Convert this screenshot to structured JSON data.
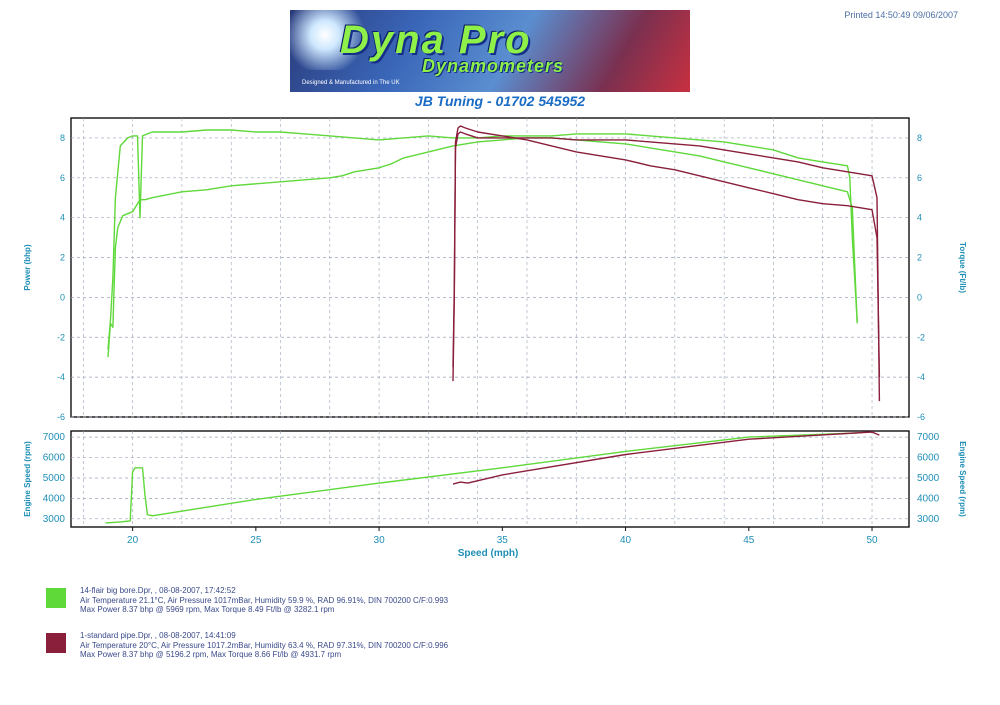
{
  "header": {
    "printed": "Printed 14:50:49 09/06/2007",
    "logo_brand": "Dyna Pro",
    "logo_sub": "Dynamometers",
    "logo_tag": "Designed & Manufactured in The UK",
    "subtitle": "JB Tuning - 01702 545952"
  },
  "colors": {
    "run1": "#5fd83a",
    "run2": "#8a1f3c",
    "axis": "#1f8fb5",
    "grid": "#9aa4b8"
  },
  "chart_data": [
    {
      "type": "line",
      "xlabel": "Speed (mph)",
      "ylabel_left": "Power (bhp)",
      "ylabel_right": "Torque (Ft/lb)",
      "xlim": [
        17.5,
        51.5
      ],
      "ylim": [
        -6,
        9
      ],
      "y_ticks_left": [
        "8",
        "6",
        "4",
        "2",
        "0",
        "-2",
        "-4",
        "-6"
      ],
      "y_ticks_right": [
        "8",
        "6",
        "4",
        "2",
        "0",
        "-2",
        "-4",
        "-6"
      ],
      "grid": true,
      "series": [
        {
          "name": "14-flair big bore.Dpr",
          "quantity": "power",
          "color": "#5fd83a",
          "x": [
            19.0,
            19.1,
            19.2,
            19.25,
            19.3,
            19.4,
            19.6,
            19.8,
            20.0,
            20.3,
            20.5,
            20.8,
            21.2,
            22,
            23,
            24,
            25,
            26,
            27,
            28,
            28.5,
            29,
            30,
            30.5,
            31,
            32,
            33,
            34,
            35,
            36,
            37,
            38,
            39,
            40,
            41,
            42,
            43,
            44,
            45,
            46,
            47,
            48,
            49,
            49.2,
            49.3,
            49.4
          ],
          "y": [
            -3.0,
            -1.3,
            -1.5,
            0.5,
            2.5,
            3.5,
            4.1,
            4.2,
            4.3,
            4.9,
            4.9,
            5.0,
            5.1,
            5.3,
            5.4,
            5.6,
            5.7,
            5.8,
            5.9,
            6.0,
            6.1,
            6.3,
            6.5,
            6.7,
            7.0,
            7.3,
            7.6,
            7.8,
            7.9,
            8.0,
            8.0,
            7.9,
            7.8,
            7.7,
            7.5,
            7.3,
            7.1,
            6.8,
            6.5,
            6.2,
            5.9,
            5.6,
            5.3,
            4.5,
            1.5,
            -1.3
          ]
        },
        {
          "name": "14-flair big bore.Dpr",
          "quantity": "torque",
          "color": "#5fd83a",
          "x": [
            19.0,
            19.1,
            19.2,
            19.3,
            19.5,
            19.8,
            20.0,
            20.2,
            20.3,
            20.4,
            20.6,
            20.8,
            21,
            22,
            23,
            24,
            25,
            26,
            27,
            28,
            29,
            30,
            31,
            32,
            33,
            34,
            35,
            36,
            37,
            38,
            39,
            40,
            41,
            42,
            43,
            44,
            45,
            46,
            47,
            48,
            49,
            49.1,
            49.2,
            49.4
          ],
          "y": [
            -2.6,
            -1.2,
            1.0,
            5.0,
            7.6,
            8.0,
            8.1,
            8.1,
            4.0,
            8.1,
            8.2,
            8.3,
            8.3,
            8.3,
            8.4,
            8.4,
            8.3,
            8.3,
            8.2,
            8.1,
            8.0,
            7.9,
            8.0,
            8.1,
            8.0,
            8.0,
            8.1,
            8.1,
            8.1,
            8.2,
            8.2,
            8.2,
            8.1,
            8.0,
            7.9,
            7.8,
            7.6,
            7.4,
            7.0,
            6.8,
            6.6,
            6.0,
            3.0,
            -1.2
          ]
        },
        {
          "name": "1-standard pipe.Dpr",
          "quantity": "power",
          "color": "#8a1f3c",
          "x": [
            33.0,
            33.05,
            33.1,
            33.2,
            33.3,
            33.5,
            34,
            35,
            36,
            37,
            38,
            39,
            40,
            41,
            42,
            43,
            44,
            45,
            46,
            47,
            48,
            49,
            49.5,
            50,
            50.2,
            50.3
          ],
          "y": [
            -3.5,
            0.5,
            7.8,
            8.5,
            8.6,
            8.5,
            8.3,
            8.1,
            7.9,
            7.6,
            7.3,
            7.1,
            6.9,
            6.6,
            6.4,
            6.1,
            5.8,
            5.5,
            5.2,
            4.9,
            4.7,
            4.6,
            4.5,
            4.4,
            3.0,
            -4.0
          ]
        },
        {
          "name": "1-standard pipe.Dpr",
          "quantity": "torque",
          "color": "#8a1f3c",
          "x": [
            33.0,
            33.05,
            33.1,
            33.2,
            33.3,
            33.5,
            34,
            35,
            36,
            37,
            38,
            39,
            40,
            41,
            42,
            43,
            44,
            45,
            46,
            47,
            48,
            49,
            49.5,
            50,
            50.2,
            50.3
          ],
          "y": [
            -4.2,
            0.0,
            7.5,
            8.2,
            8.3,
            8.2,
            8.0,
            8.0,
            8.0,
            8.0,
            7.9,
            7.9,
            7.9,
            7.8,
            7.7,
            7.6,
            7.4,
            7.2,
            7.0,
            6.8,
            6.5,
            6.3,
            6.2,
            6.1,
            5.0,
            -5.2
          ]
        }
      ]
    },
    {
      "type": "line",
      "ylabel_left": "Engine Speed (rpm)",
      "ylabel_right": "Engine Speed (rpm)",
      "xlim": [
        17.5,
        51.5
      ],
      "ylim": [
        2600,
        7300
      ],
      "x_ticks": [
        "20",
        "25",
        "30",
        "35",
        "40",
        "45",
        "50"
      ],
      "y_ticks_left": [
        "7000",
        "6000",
        "5000",
        "4000",
        "3000"
      ],
      "y_ticks_right": [
        "7000",
        "6000",
        "5000",
        "4000",
        "3000"
      ],
      "grid": true,
      "series": [
        {
          "name": "14-flair big bore.Dpr",
          "color": "#5fd83a",
          "x": [
            18.9,
            19.5,
            19.9,
            20.0,
            20.1,
            20.4,
            20.5,
            20.6,
            20.8,
            25,
            30,
            35,
            40,
            45,
            49.4
          ],
          "y": [
            2800,
            2850,
            2900,
            5300,
            5500,
            5500,
            4200,
            3200,
            3150,
            3950,
            4750,
            5500,
            6300,
            7000,
            7200
          ]
        },
        {
          "name": "1-standard pipe.Dpr",
          "color": "#8a1f3c",
          "x": [
            33.0,
            33.3,
            33.6,
            35,
            40,
            45,
            50.0,
            50.3
          ],
          "y": [
            4700,
            4800,
            4750,
            5150,
            6150,
            6900,
            7250,
            7100
          ]
        }
      ]
    }
  ],
  "legend": [
    {
      "color": "#5fd83a",
      "line1": "14-flair big bore.Dpr,    ,    08-08-2007,    17:42:52",
      "line2": "Air Temperature 21.1°C,    Air Pressure 1017mBar,    Humidity 59.9 %,    RAD 96.91%,    DIN 700200    C/F:0.993",
      "line3": "Max Power 8.37 bhp @ 5969 rpm,    Max Torque 8.49 Ft/lb @ 3282.1 rpm"
    },
    {
      "color": "#8a1f3c",
      "line1": "1-standard pipe.Dpr,    ,    08-08-2007,    14:41:09",
      "line2": "Air Temperature 20°C,    Air Pressure 1017.2mBar,    Humidity 63.4 %,    RAD 97.31%,    DIN 700200    C/F:0.996",
      "line3": "Max Power 8.37 bhp @ 5196.2 rpm,    Max Torque 8.66 Ft/lb @ 4931.7 rpm"
    }
  ]
}
